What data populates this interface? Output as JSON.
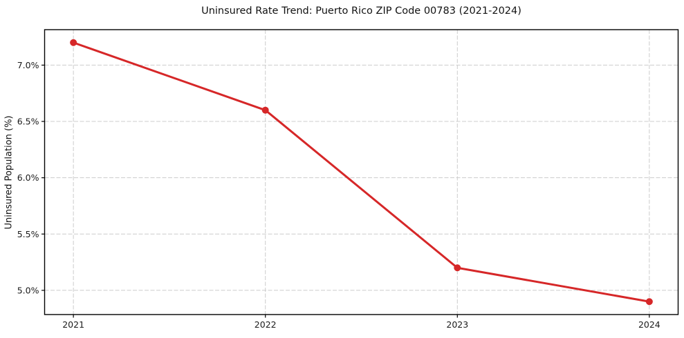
{
  "chart_data": {
    "type": "line",
    "title": "Uninsured Rate Trend: Puerto Rico ZIP Code 00783 (2021-2024)",
    "xlabel": "",
    "ylabel": "Uninsured Population (%)",
    "x": [
      2021,
      2022,
      2023,
      2024
    ],
    "values": [
      7.2,
      6.6,
      5.2,
      4.9
    ],
    "xtick_labels": [
      "2021",
      "2022",
      "2023",
      "2024"
    ],
    "ytick_values": [
      5.0,
      5.5,
      6.0,
      6.5,
      7.0
    ],
    "ytick_labels": [
      "5.0%",
      "5.5%",
      "6.0%",
      "6.5%",
      "7.0%"
    ],
    "xlim": [
      2020.85,
      2024.15
    ],
    "ylim": [
      4.785,
      7.315
    ],
    "grid": true,
    "grid_style": "dashed",
    "legend": "none",
    "colors": {
      "line": "#d62728",
      "marker": "#d62728",
      "grid": "#cccccc",
      "spine": "#000000",
      "tick_text": "#1a1a1a",
      "background": "#ffffff"
    }
  }
}
